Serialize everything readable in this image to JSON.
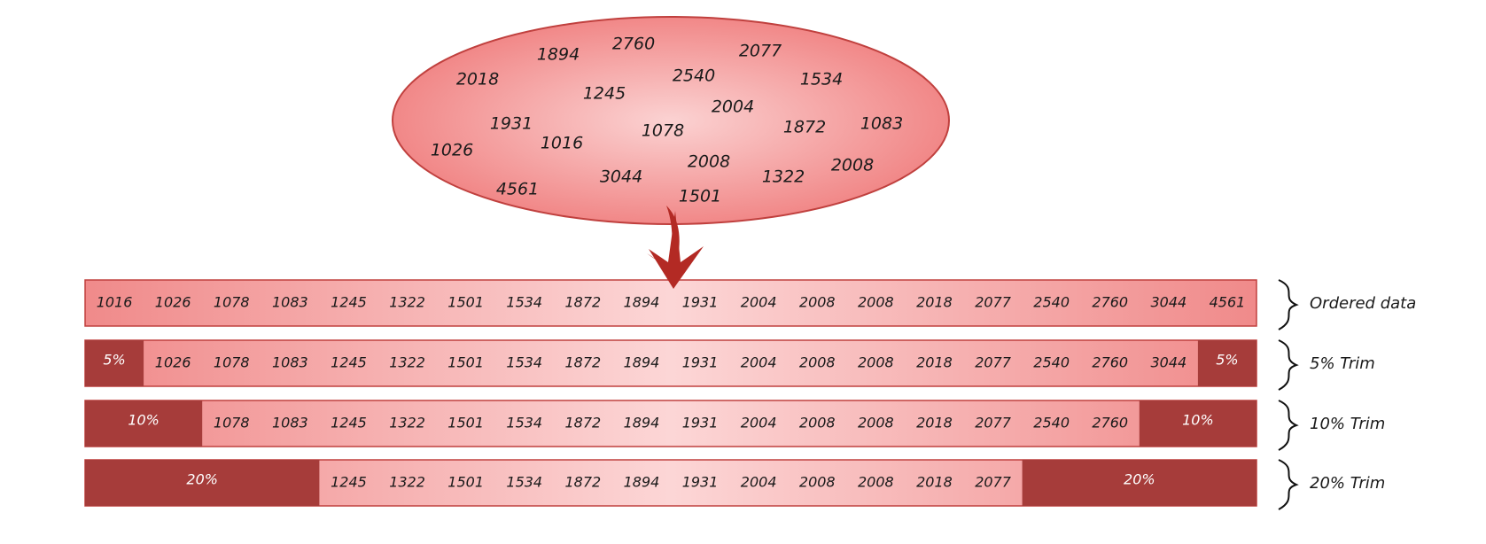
{
  "blob_values": [
    "2760",
    "1894",
    "2077",
    "2018",
    "2540",
    "1534",
    "1245",
    "2004",
    "1931",
    "1872",
    "1083",
    "1016",
    "1078",
    "1026",
    "2008",
    "2008",
    "3044",
    "1322",
    "4561",
    "1501"
  ],
  "rows": [
    {
      "label": "Ordered data",
      "trim_percent": 0,
      "trim_text": "",
      "values": [
        "1016",
        "1026",
        "1078",
        "1083",
        "1245",
        "1322",
        "1501",
        "1534",
        "1872",
        "1894",
        "1931",
        "2004",
        "2008",
        "2008",
        "2018",
        "2077",
        "2540",
        "2760",
        "3044",
        "4561"
      ]
    },
    {
      "label": "5% Trim",
      "trim_percent": 5,
      "trim_text": "5%",
      "values": [
        "1026",
        "1078",
        "1083",
        "1245",
        "1322",
        "1501",
        "1534",
        "1872",
        "1894",
        "1931",
        "2004",
        "2008",
        "2008",
        "2018",
        "2077",
        "2540",
        "2760",
        "3044"
      ]
    },
    {
      "label": "10% Trim",
      "trim_percent": 10,
      "trim_text": "10%",
      "values": [
        "1078",
        "1083",
        "1245",
        "1322",
        "1501",
        "1534",
        "1872",
        "1894",
        "1931",
        "2004",
        "2008",
        "2008",
        "2018",
        "2077",
        "2540",
        "2760"
      ]
    },
    {
      "label": "20% Trim",
      "trim_percent": 20,
      "trim_text": "20%",
      "values": [
        "1245",
        "1322",
        "1501",
        "1534",
        "1872",
        "1894",
        "1931",
        "2004",
        "2008",
        "2008",
        "2018",
        "2077"
      ]
    }
  ],
  "colors": {
    "trim_fill": "#a63c3a",
    "bar_edge": "#f08a8a",
    "bar_center": "#fbd2d2",
    "outline": "#c0403e",
    "arrow": "#b32a24"
  }
}
